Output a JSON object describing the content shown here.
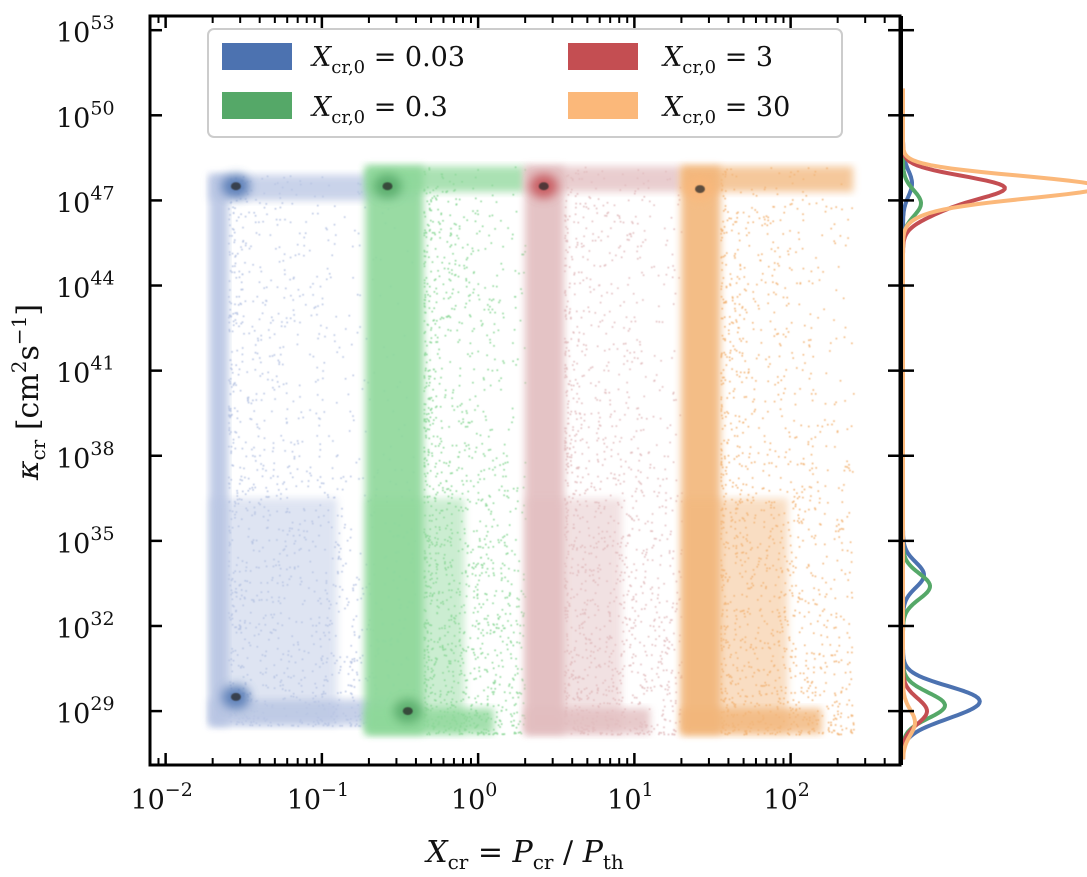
{
  "chart_data": {
    "type": "scatter",
    "subtype": "2D density histogram with marginal KDE (log-log)",
    "xlabel": {
      "main": "X",
      "main_sub": "cr",
      "eq": " = ",
      "num": "P",
      "num_sub": "cr",
      "slash": " / ",
      "den": "P",
      "den_sub": "th"
    },
    "ylabel": {
      "main": "κ",
      "main_sub": "cr",
      "unit_open": " [cm",
      "unit_sup1": "2",
      "unit_mid": "s",
      "unit_sup2": "−1",
      "unit_close": "]"
    },
    "x_scale": "log",
    "y_scale": "log",
    "xlim_log10": [
      -2.1,
      2.7
    ],
    "ylim_log10": [
      27.1,
      53.5
    ],
    "x_ticks": [
      {
        "log": -2,
        "base": "10",
        "exp": "−2"
      },
      {
        "log": -1,
        "base": "10",
        "exp": "−1"
      },
      {
        "log": 0,
        "base": "10",
        "exp": "0"
      },
      {
        "log": 1,
        "base": "10",
        "exp": "1"
      },
      {
        "log": 2,
        "base": "10",
        "exp": "2"
      }
    ],
    "y_ticks": [
      {
        "log": 29,
        "base": "10",
        "exp": "29"
      },
      {
        "log": 32,
        "base": "10",
        "exp": "32"
      },
      {
        "log": 35,
        "base": "10",
        "exp": "35"
      },
      {
        "log": 38,
        "base": "10",
        "exp": "38"
      },
      {
        "log": 41,
        "base": "10",
        "exp": "41"
      },
      {
        "log": 44,
        "base": "10",
        "exp": "44"
      },
      {
        "log": 47,
        "base": "10",
        "exp": "47"
      },
      {
        "log": 50,
        "base": "10",
        "exp": "50"
      },
      {
        "log": 53,
        "base": "10",
        "exp": "53"
      }
    ],
    "legend": {
      "placement": "upper-center",
      "entries": [
        {
          "key": "s003",
          "sym": "X",
          "sub": "cr,0",
          "rel": " = ",
          "val": "0.03",
          "color": "#4c72b0"
        },
        {
          "key": "s3",
          "sym": "X",
          "sub": "cr,0",
          "rel": " = ",
          "val": "3",
          "color": "#c44e52"
        },
        {
          "key": "s03",
          "sym": "X",
          "sub": "cr,0",
          "rel": " = ",
          "val": "0.3",
          "color": "#55a868"
        },
        {
          "key": "s30",
          "sym": "X",
          "sub": "cr,0",
          "rel": " = ",
          "val": "30",
          "color": "#fbb87a"
        }
      ]
    },
    "series": [
      {
        "key": "s003",
        "name": "X_cr,0 = 0.03",
        "color": "#4c72b0",
        "light": "#b8c5e3",
        "x_range_log10": [
          -1.72,
          -1.6
        ],
        "x_spread_log10": [
          -1.78,
          -0.4
        ],
        "y_top_log10": 47.9,
        "y_bottom_log10": 28.5,
        "peaks": [
          {
            "x_log10": -1.55,
            "y_log10": 29.5
          },
          {
            "x_log10": -1.55,
            "y_log10": 47.5
          }
        ],
        "marginal_kde": [
          {
            "y_log10": 29.5,
            "density": 1.0
          },
          {
            "y_log10": 28.9,
            "density": 0.55
          },
          {
            "y_log10": 33.8,
            "density": 0.35
          },
          {
            "y_log10": 47.6,
            "density": 0.15
          }
        ]
      },
      {
        "key": "s03",
        "name": "X_cr,0 = 0.3",
        "color": "#55a868",
        "light": "#8ed89a",
        "x_range_log10": [
          -0.72,
          -0.35
        ],
        "x_spread_log10": [
          -0.72,
          0.3
        ],
        "y_top_log10": 48.2,
        "y_bottom_log10": 28.2,
        "peaks": [
          {
            "x_log10": -0.58,
            "y_log10": 47.5
          },
          {
            "x_log10": -0.45,
            "y_log10": 29.0
          }
        ],
        "marginal_kde": [
          {
            "y_log10": 29.2,
            "density": 0.7
          },
          {
            "y_log10": 33.4,
            "density": 0.45
          },
          {
            "y_log10": 46.9,
            "density": 0.3
          }
        ]
      },
      {
        "key": "s3",
        "name": "X_cr,0 = 3",
        "color": "#c44e52",
        "light": "#e2bdbf",
        "x_range_log10": [
          0.3,
          0.55
        ],
        "x_spread_log10": [
          0.3,
          1.3
        ],
        "y_top_log10": 48.2,
        "y_bottom_log10": 28.2,
        "peaks": [
          {
            "x_log10": 0.42,
            "y_log10": 47.5
          }
        ],
        "marginal_kde": [
          {
            "y_log10": 47.5,
            "density": 1.5
          },
          {
            "y_log10": 46.8,
            "density": 0.6
          },
          {
            "y_log10": 29.0,
            "density": 0.4
          }
        ]
      },
      {
        "key": "s30",
        "name": "X_cr,0 = 30",
        "color": "#fbb87a",
        "light": "#f2b67a",
        "x_range_log10": [
          1.3,
          1.55
        ],
        "x_spread_log10": [
          1.3,
          2.4
        ],
        "y_top_log10": 48.2,
        "y_bottom_log10": 28.2,
        "peaks": [
          {
            "x_log10": 1.42,
            "y_log10": 47.4
          }
        ],
        "marginal_kde": [
          {
            "y_log10": 47.5,
            "density": 3.0
          },
          {
            "y_log10": 47.0,
            "density": 0.5
          },
          {
            "y_log10": 28.6,
            "density": 0.2
          }
        ]
      }
    ]
  }
}
